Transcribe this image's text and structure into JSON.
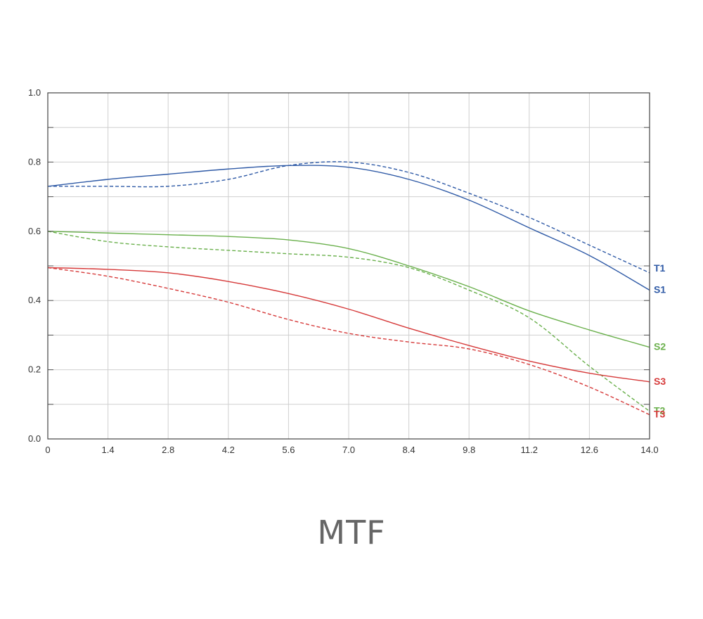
{
  "chart_data": {
    "type": "line",
    "title": "MTF",
    "xlim": [
      0,
      14.0
    ],
    "ylim": [
      0,
      1.0
    ],
    "x_ticks": [
      "0",
      "1.4",
      "2.8",
      "4.2",
      "5.6",
      "7.0",
      "8.4",
      "9.8",
      "11.2",
      "12.6",
      "14.0"
    ],
    "y_ticks": [
      "0.0",
      "0.2",
      "0.4",
      "0.6",
      "0.8",
      "1.0"
    ],
    "grid": true,
    "series": [
      {
        "name": "T1",
        "color": "#2f5aa6",
        "dash": true,
        "x": [
          0,
          1.4,
          2.8,
          4.2,
          5.6,
          7.0,
          8.4,
          9.8,
          11.2,
          12.6,
          14.0
        ],
        "y": [
          0.73,
          0.73,
          0.73,
          0.75,
          0.79,
          0.8,
          0.77,
          0.71,
          0.64,
          0.56,
          0.48
        ]
      },
      {
        "name": "S1",
        "color": "#2f5aa6",
        "dash": false,
        "x": [
          0,
          1.4,
          2.8,
          4.2,
          5.6,
          7.0,
          8.4,
          9.8,
          11.2,
          12.6,
          14.0
        ],
        "y": [
          0.73,
          0.75,
          0.765,
          0.78,
          0.79,
          0.785,
          0.75,
          0.69,
          0.61,
          0.53,
          0.43
        ]
      },
      {
        "name": "S2",
        "color": "#6ab04c",
        "dash": false,
        "x": [
          0,
          1.4,
          2.8,
          4.2,
          5.6,
          7.0,
          8.4,
          9.8,
          11.2,
          12.6,
          14.0
        ],
        "y": [
          0.6,
          0.595,
          0.59,
          0.585,
          0.575,
          0.55,
          0.5,
          0.44,
          0.37,
          0.315,
          0.265
        ]
      },
      {
        "name": "T2",
        "color": "#6ab04c",
        "dash": true,
        "x": [
          0,
          1.4,
          2.8,
          4.2,
          5.6,
          7.0,
          8.4,
          9.8,
          11.2,
          12.6,
          14.0
        ],
        "y": [
          0.6,
          0.57,
          0.555,
          0.545,
          0.535,
          0.525,
          0.495,
          0.43,
          0.35,
          0.21,
          0.08
        ]
      },
      {
        "name": "S3",
        "color": "#d63a3a",
        "dash": false,
        "x": [
          0,
          1.4,
          2.8,
          4.2,
          5.6,
          7.0,
          8.4,
          9.8,
          11.2,
          12.6,
          14.0
        ],
        "y": [
          0.495,
          0.49,
          0.48,
          0.455,
          0.42,
          0.375,
          0.32,
          0.27,
          0.225,
          0.19,
          0.165
        ]
      },
      {
        "name": "T3",
        "color": "#d63a3a",
        "dash": true,
        "x": [
          0,
          1.4,
          2.8,
          4.2,
          5.6,
          7.0,
          8.4,
          9.8,
          11.2,
          12.6,
          14.0
        ],
        "y": [
          0.495,
          0.47,
          0.435,
          0.395,
          0.345,
          0.305,
          0.28,
          0.26,
          0.215,
          0.15,
          0.07
        ]
      }
    ]
  }
}
